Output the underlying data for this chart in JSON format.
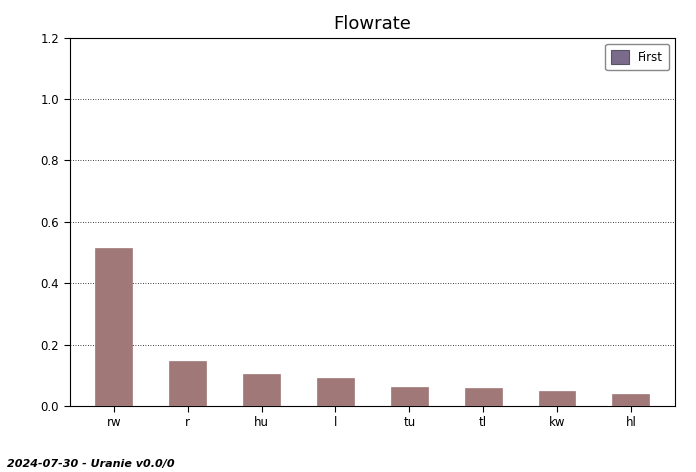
{
  "title": "Flowrate",
  "categories": [
    "rw",
    "r",
    "hu",
    "l",
    "tu",
    "tl",
    "kw",
    "hl"
  ],
  "values": [
    0.515,
    0.148,
    0.105,
    0.092,
    0.062,
    0.058,
    0.048,
    0.038
  ],
  "bar_color": "#a07878",
  "bar_edge_color": "#a07878",
  "legend_label": "First",
  "legend_box_color": "#7b6b8a",
  "legend_box_edge": "#555566",
  "ylim": [
    0,
    1.2
  ],
  "yticks": [
    0,
    0.2,
    0.4,
    0.6,
    0.8,
    1.0,
    1.2
  ],
  "grid_color": "#000000",
  "background_color": "#ffffff",
  "footer_text": "2024-07-30 - Uranie v0.0/0",
  "title_fontsize": 13,
  "tick_fontsize": 8.5,
  "footer_fontsize": 8
}
